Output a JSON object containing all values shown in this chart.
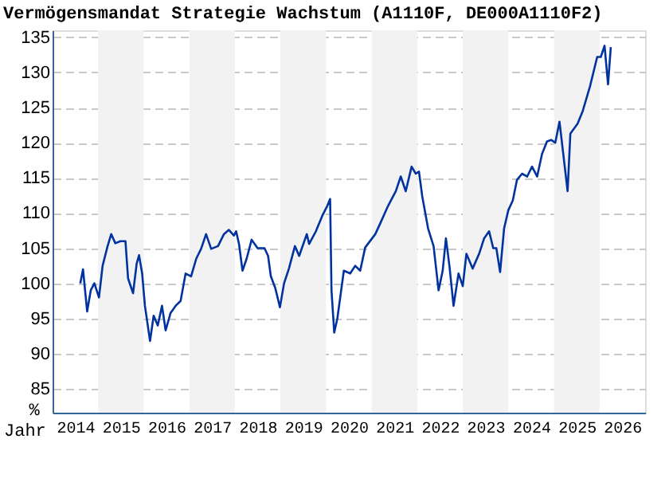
{
  "chart_data": {
    "type": "line",
    "title": "Vermögensmandat Strategie Wachstum (A1110F, DE000A1110F2)",
    "xlabel": "Jahr",
    "ylabel": "%",
    "x": [
      "2014-08-11",
      "2014-09-02",
      "2014-10-05",
      "2014-11-03",
      "2014-12-02",
      "2015-01-08",
      "2015-02-06",
      "2015-03-18",
      "2015-04-16",
      "2015-05-19",
      "2015-06-29",
      "2015-08-08",
      "2015-08-29",
      "2015-10-08",
      "2015-11-06",
      "2015-11-25",
      "2015-12-20",
      "2016-01-11",
      "2016-02-21",
      "2016-03-21",
      "2016-04-23",
      "2016-05-27",
      "2016-06-25",
      "2016-08-04",
      "2016-09-13",
      "2016-10-23",
      "2016-12-02",
      "2017-01-15",
      "2017-02-25",
      "2017-04-05",
      "2017-05-15",
      "2017-06-25",
      "2017-08-19",
      "2017-10-05",
      "2017-11-14",
      "2017-12-24",
      "2018-01-11",
      "2018-02-03",
      "2018-03-03",
      "2018-04-05",
      "2018-05-15",
      "2018-07-02",
      "2018-08-26",
      "2018-09-24",
      "2018-10-16",
      "2018-11-21",
      "2018-12-28",
      "2019-01-30",
      "2019-03-10",
      "2019-04-27",
      "2019-05-31",
      "2019-07-31",
      "2019-08-19",
      "2019-10-12",
      "2019-12-02",
      "2020-01-11",
      "2020-02-03",
      "2020-02-14",
      "2020-03-07",
      "2020-04-01",
      "2020-04-20",
      "2020-05-23",
      "2020-07-13",
      "2020-08-22",
      "2020-10-01",
      "2020-11-10",
      "2021-01-30",
      "2021-03-10",
      "2021-05-12",
      "2021-07-13",
      "2021-08-22",
      "2021-10-01",
      "2021-11-17",
      "2021-12-20",
      "2022-01-15",
      "2022-02-10",
      "2022-03-29",
      "2022-05-12",
      "2022-06-21",
      "2022-07-24",
      "2022-08-19",
      "2022-09-16",
      "2022-10-19",
      "2022-11-28",
      "2023-01-01",
      "2023-01-30",
      "2023-03-21",
      "2023-05-12",
      "2023-06-21",
      "2023-07-31",
      "2023-09-02",
      "2023-09-27",
      "2023-10-27",
      "2023-11-28",
      "2024-01-01",
      "2024-02-06",
      "2024-03-10",
      "2024-04-20",
      "2024-05-31",
      "2024-07-09",
      "2024-08-19",
      "2024-09-27",
      "2024-11-06",
      "2024-12-09",
      "2025-01-11",
      "2025-02-14",
      "2025-04-20",
      "2025-05-12",
      "2025-07-09",
      "2025-08-19",
      "2025-10-16",
      "2025-12-13",
      "2026-01-11",
      "2026-02-10",
      "2026-03-10",
      "2026-04-01"
    ],
    "series": [
      {
        "color": "#0033a0",
        "values": [
          100,
          102,
          96,
          99,
          100,
          98,
          102.5,
          105.3,
          107,
          105.7,
          106,
          106,
          100.7,
          98.6,
          102.8,
          104,
          101.4,
          96.8,
          91.8,
          95.4,
          94,
          96.8,
          93.3,
          95.8,
          96.8,
          97.5,
          101.4,
          101,
          103.5,
          104.9,
          107,
          104.9,
          105.3,
          107,
          107.6,
          106.8,
          107.4,
          105.6,
          101.8,
          103.5,
          106.2,
          105,
          105,
          103.9,
          101,
          99.3,
          96.6,
          100,
          102.1,
          105.3,
          103.9,
          107,
          105.6,
          107.4,
          109.6,
          111,
          112,
          99,
          93,
          95,
          97.5,
          101.8,
          101.4,
          102.5,
          101.8,
          105.1,
          107,
          108.5,
          111,
          113.1,
          115.2,
          113.1,
          116.6,
          115.6,
          115.9,
          112.4,
          107.8,
          105.3,
          99,
          101.8,
          106.4,
          102.5,
          96.8,
          101.4,
          99.6,
          104.2,
          102.1,
          104.2,
          106.4,
          107.4,
          105,
          105,
          101.6,
          107.8,
          110.4,
          111.8,
          114.7,
          115.6,
          115.2,
          116.6,
          115.2,
          118.4,
          120.2,
          120.4,
          120,
          123,
          113.1,
          121.3,
          122.7,
          124.5,
          128,
          132.2,
          132.2,
          133.8,
          128.3,
          133.6
        ]
      }
    ],
    "xlim": [
      "2014-01-01",
      "2027-01-01"
    ],
    "xticks": [
      {
        "value": "2014-07-02",
        "label": "2014"
      },
      {
        "value": "2015-07-02",
        "label": "2015"
      },
      {
        "value": "2016-07-02",
        "label": "2016"
      },
      {
        "value": "2017-07-02",
        "label": "2017"
      },
      {
        "value": "2018-07-02",
        "label": "2018"
      },
      {
        "value": "2019-07-02",
        "label": "2019"
      },
      {
        "value": "2020-07-02",
        "label": "2020"
      },
      {
        "value": "2021-07-02",
        "label": "2021"
      },
      {
        "value": "2022-07-02",
        "label": "2022"
      },
      {
        "value": "2023-07-02",
        "label": "2023"
      },
      {
        "value": "2024-07-02",
        "label": "2024"
      },
      {
        "value": "2025-07-02",
        "label": "2025"
      },
      {
        "value": "2026-07-02",
        "label": "2026"
      }
    ],
    "ylim": [
      81.6,
      136
    ],
    "yticks": [
      85,
      90,
      95,
      100,
      105,
      110,
      115,
      120,
      125,
      130,
      135
    ],
    "grid": "y",
    "marker": "none",
    "line_style": "solid",
    "bands": [
      {
        "axis": "x",
        "from": "2015-01-01",
        "to": "2016-01-01",
        "color": "#f2f2f2"
      },
      {
        "axis": "x",
        "from": "2017-01-01",
        "to": "2018-01-01",
        "color": "#f2f2f2"
      },
      {
        "axis": "x",
        "from": "2019-01-01",
        "to": "2020-01-01",
        "color": "#f2f2f2"
      },
      {
        "axis": "x",
        "from": "2021-01-01",
        "to": "2022-01-01",
        "color": "#f2f2f2"
      },
      {
        "axis": "x",
        "from": "2023-01-01",
        "to": "2024-01-01",
        "color": "#f2f2f2"
      },
      {
        "axis": "x",
        "from": "2025-01-01",
        "to": "2026-01-01",
        "color": "#f2f2f2"
      }
    ]
  }
}
